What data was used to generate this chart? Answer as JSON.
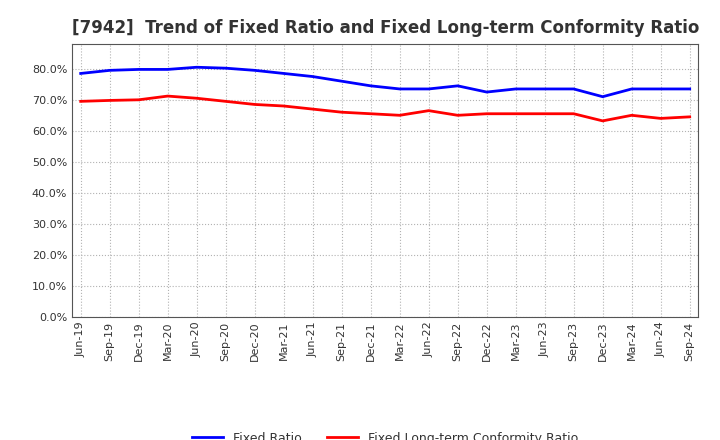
{
  "title": "[7942]  Trend of Fixed Ratio and Fixed Long-term Conformity Ratio",
  "labels": [
    "Jun-19",
    "Sep-19",
    "Dec-19",
    "Mar-20",
    "Jun-20",
    "Sep-20",
    "Dec-20",
    "Mar-21",
    "Jun-21",
    "Sep-21",
    "Dec-21",
    "Mar-22",
    "Jun-22",
    "Sep-22",
    "Dec-22",
    "Mar-23",
    "Jun-23",
    "Sep-23",
    "Dec-23",
    "Mar-24",
    "Jun-24",
    "Sep-24"
  ],
  "fixed_ratio": [
    78.5,
    79.5,
    79.8,
    79.8,
    80.5,
    80.2,
    79.5,
    78.5,
    77.5,
    76.0,
    74.5,
    73.5,
    73.5,
    74.5,
    72.5,
    73.5,
    73.5,
    73.5,
    71.0,
    73.5,
    73.5,
    73.5
  ],
  "fixed_lt_ratio": [
    69.5,
    69.8,
    70.0,
    71.2,
    70.5,
    69.5,
    68.5,
    68.0,
    67.0,
    66.0,
    65.5,
    65.0,
    66.5,
    65.0,
    65.5,
    65.5,
    65.5,
    65.5,
    63.2,
    65.0,
    64.0,
    64.5
  ],
  "fixed_ratio_color": "#0000ff",
  "fixed_lt_ratio_color": "#ff0000",
  "background_color": "#ffffff",
  "plot_bg_color": "#ffffff",
  "grid_color": "#aaaaaa",
  "ylim": [
    0,
    88
  ],
  "yticks": [
    0,
    10,
    20,
    30,
    40,
    50,
    60,
    70,
    80
  ],
  "title_fontsize": 12,
  "axis_label_fontsize": 8,
  "legend_fixed_ratio": "Fixed Ratio",
  "legend_fixed_lt_ratio": "Fixed Long-term Conformity Ratio"
}
